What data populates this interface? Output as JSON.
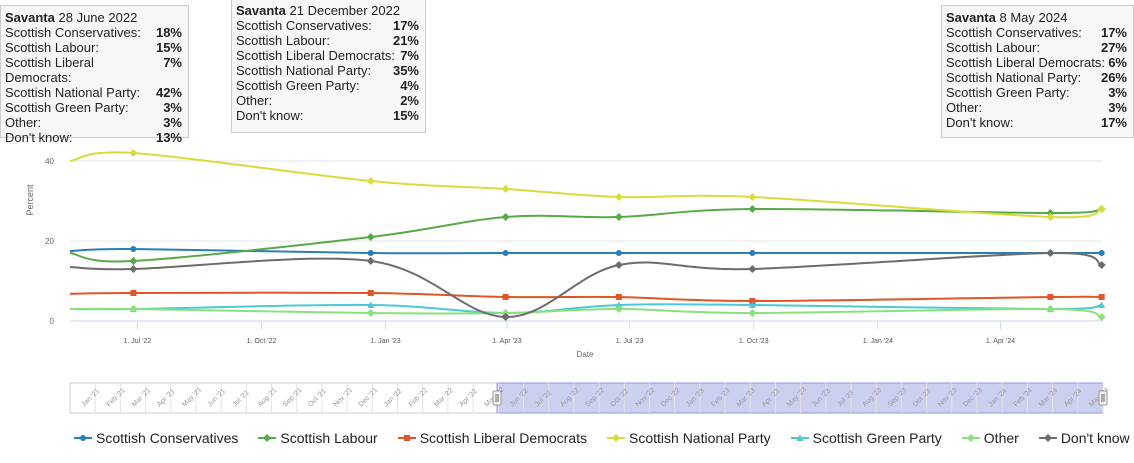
{
  "tooltips": [
    {
      "source": "Savanta",
      "date": "28 June 2022",
      "rows": [
        {
          "party": "Scottish Conservatives:",
          "value": "18%"
        },
        {
          "party": "Scottish Labour:",
          "value": "15%"
        },
        {
          "party": "Scottish Liberal Democrats:",
          "value": "7%"
        },
        {
          "party": "Scottish National Party:",
          "value": "42%"
        },
        {
          "party": "Scottish Green Party:",
          "value": "3%"
        },
        {
          "party": "Other:",
          "value": "3%"
        },
        {
          "party": "Don't know:",
          "value": "13%"
        }
      ]
    },
    {
      "source": "Savanta",
      "date": "21 December 2022",
      "rows": [
        {
          "party": "Scottish Conservatives:",
          "value": "17%"
        },
        {
          "party": "Scottish Labour:",
          "value": "21%"
        },
        {
          "party": "Scottish Liberal Democrats:",
          "value": "7%"
        },
        {
          "party": "Scottish National Party:",
          "value": "35%"
        },
        {
          "party": "Scottish Green Party:",
          "value": "4%"
        },
        {
          "party": "Other:",
          "value": "2%"
        },
        {
          "party": "Don't know:",
          "value": "15%"
        }
      ]
    },
    {
      "source": "Savanta",
      "date": "8 May 2024",
      "rows": [
        {
          "party": "Scottish Conservatives:",
          "value": "17%"
        },
        {
          "party": "Scottish Labour:",
          "value": "27%"
        },
        {
          "party": "Scottish Liberal Democrats:",
          "value": "6%"
        },
        {
          "party": "Scottish National Party:",
          "value": "26%"
        },
        {
          "party": "Scottish Green Party:",
          "value": "3%"
        },
        {
          "party": "Other:",
          "value": "3%"
        },
        {
          "party": "Don't know:",
          "value": "17%"
        }
      ]
    }
  ],
  "navigator_labels": [
    "Jan '21",
    "Feb '21",
    "Mar '21",
    "Apr '21",
    "May '21",
    "Jun '21",
    "Jul '21",
    "Aug '21",
    "Sep '21",
    "Oct '21",
    "Nov '21",
    "Dec '21",
    "Jan '22",
    "Feb '22",
    "Mar '22",
    "Apr '22",
    "May '22",
    "Jun '22",
    "Jul '22",
    "Aug '22",
    "Sep '22",
    "Oct '22",
    "Nov '22",
    "Dec '22",
    "Jan '23",
    "Feb '23",
    "Mar '23",
    "Apr '23",
    "May '23",
    "Jun '23",
    "Jul '23",
    "Aug '23",
    "Sep '23",
    "Oct '23",
    "Nov '23",
    "Dec '23",
    "Jan '24",
    "Feb '24",
    "Mar '24",
    "Apr '24",
    "May '24"
  ],
  "chart_data": {
    "type": "line",
    "xlabel": "Date",
    "ylabel": "Percent",
    "ylim": [
      0,
      45
    ],
    "yticks": [
      0,
      20,
      40
    ],
    "xlim": [
      "2022-05-12",
      "2024-06-16"
    ],
    "xticks": [
      {
        "date": "2022-07-01",
        "label": "1. Jul '22"
      },
      {
        "date": "2022-10-01",
        "label": "1. Oct '22"
      },
      {
        "date": "2023-01-01",
        "label": "1. Jan '23"
      },
      {
        "date": "2023-04-01",
        "label": "1. Apr '23"
      },
      {
        "date": "2023-07-01",
        "label": "1. Jul '23"
      },
      {
        "date": "2023-10-01",
        "label": "1. Oct '23"
      },
      {
        "date": "2024-01-01",
        "label": "1. Jan '24"
      },
      {
        "date": "2024-04-01",
        "label": "1. Apr '24"
      }
    ],
    "grid": true,
    "legend_position": "bottom",
    "x": [
      "2022-06-28",
      "2022-12-21",
      "2023-03-31",
      "2023-06-23",
      "2023-09-30",
      "2024-05-08",
      "2024-06-15"
    ],
    "series": [
      {
        "name": "Scottish Conservatives",
        "color": "#2b7fb4",
        "start": 17.5,
        "values": [
          18,
          17,
          17,
          17,
          17,
          17,
          17
        ]
      },
      {
        "name": "Scottish Labour",
        "color": "#58a948",
        "start": 17,
        "values": [
          15,
          21,
          26,
          26,
          28,
          27,
          28
        ]
      },
      {
        "name": "Scottish Liberal Democrats",
        "color": "#e0552a",
        "start": 6.8,
        "values": [
          7,
          7,
          6,
          6,
          5,
          6,
          6
        ]
      },
      {
        "name": "Scottish National Party",
        "color": "#d6dd3a",
        "start": 40,
        "values": [
          42,
          35,
          33,
          31,
          31,
          26,
          28
        ]
      },
      {
        "name": "Scottish Green Party",
        "color": "#4ec9d1",
        "start": 3,
        "values": [
          3,
          4,
          2,
          4,
          4,
          3,
          4
        ]
      },
      {
        "name": "Other",
        "color": "#8ce07e",
        "start": 3,
        "values": [
          3,
          2,
          2,
          3,
          2,
          3,
          1
        ]
      },
      {
        "name": "Don't know",
        "color": "#6c6c6c",
        "start": 13.5,
        "values": [
          13,
          15,
          1,
          14,
          13,
          17,
          14
        ]
      }
    ]
  }
}
